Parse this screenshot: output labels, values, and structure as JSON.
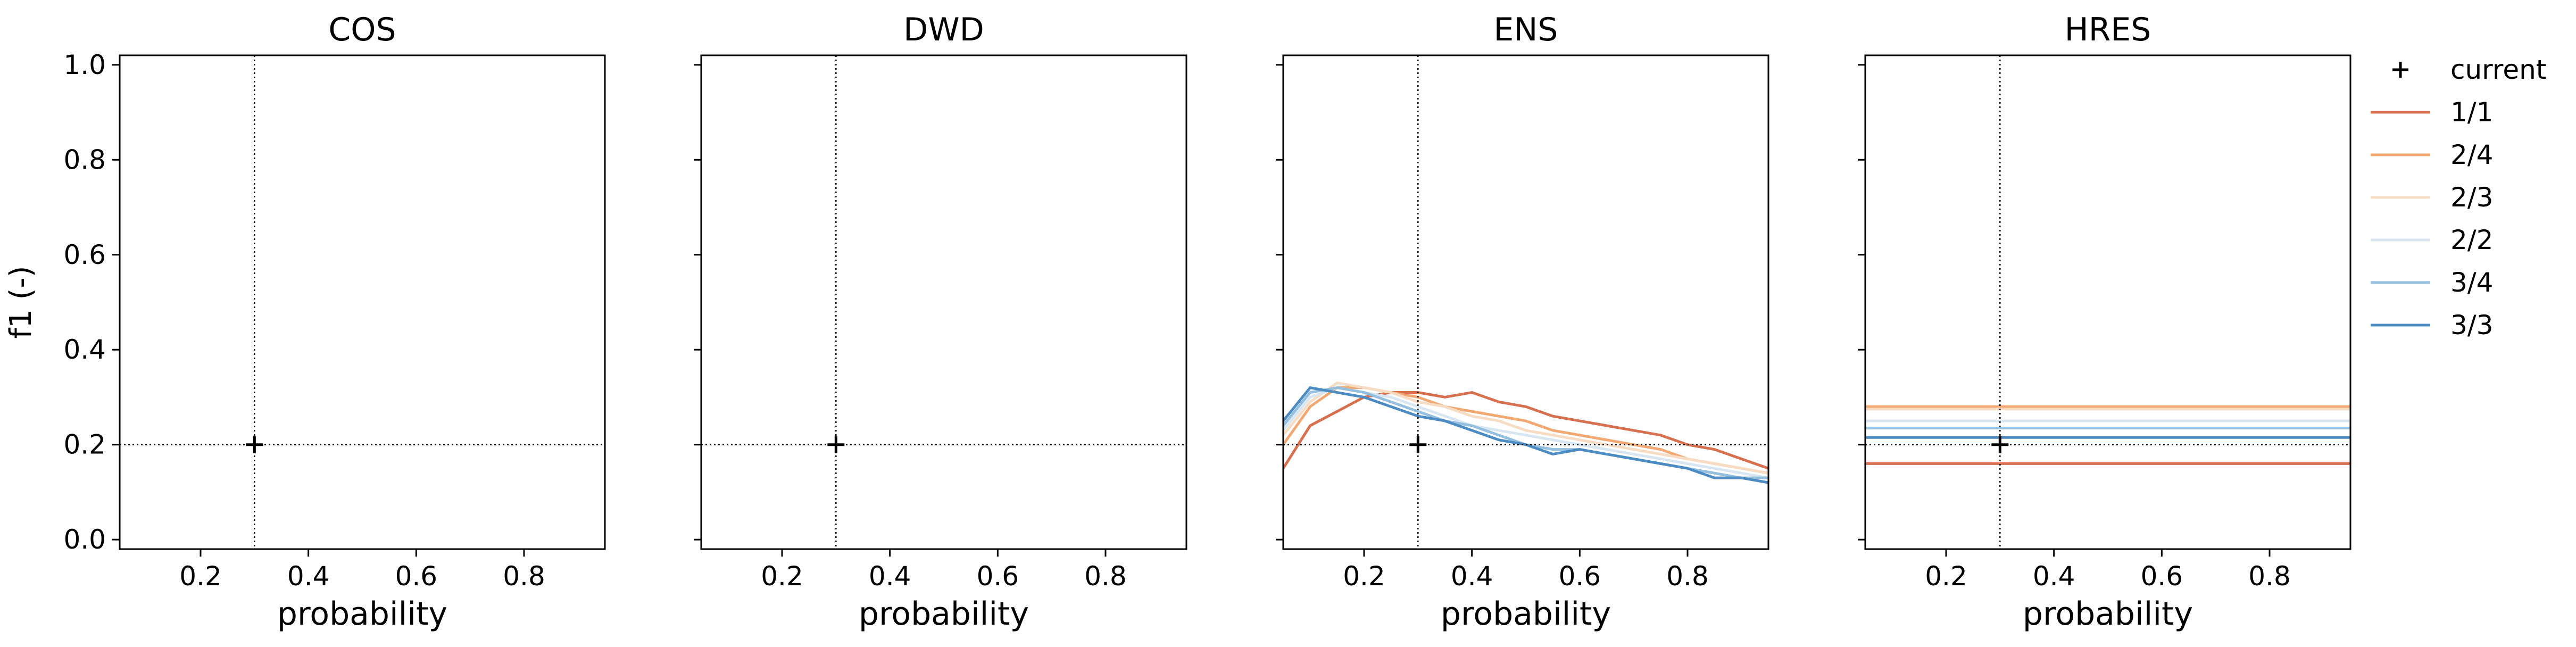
{
  "chart_data": {
    "type": "line",
    "ylabel": "f1 (-)",
    "xlabel": "probability",
    "xlim": [
      0.05,
      0.95
    ],
    "ylim": [
      -0.02,
      1.02
    ],
    "xticks": [
      0.2,
      0.4,
      0.6,
      0.8
    ],
    "xtick_labels": [
      "0.2",
      "0.4",
      "0.6",
      "0.8"
    ],
    "yticks": [
      0.0,
      0.2,
      0.4,
      0.6,
      0.8,
      1.0
    ],
    "ytick_labels": [
      "0.0",
      "0.2",
      "0.4",
      "0.6",
      "0.8",
      "1.0"
    ],
    "grid": false,
    "legend_position": "outside-right",
    "reference": {
      "x": 0.3,
      "y": 0.2,
      "label": "current"
    },
    "series_styles": [
      {
        "name": "1/1",
        "color": "#d6704f"
      },
      {
        "name": "2/4",
        "color": "#f2a873"
      },
      {
        "name": "2/3",
        "color": "#f7dcc4"
      },
      {
        "name": "2/2",
        "color": "#d8e6f2"
      },
      {
        "name": "3/4",
        "color": "#94bfdf"
      },
      {
        "name": "3/3",
        "color": "#4d8cc3"
      }
    ],
    "panels": [
      {
        "title": "COS",
        "series": []
      },
      {
        "title": "DWD",
        "series": []
      },
      {
        "title": "ENS",
        "x": [
          0.05,
          0.1,
          0.15,
          0.2,
          0.25,
          0.3,
          0.35,
          0.4,
          0.45,
          0.5,
          0.55,
          0.6,
          0.65,
          0.7,
          0.75,
          0.8,
          0.85,
          0.9,
          0.95
        ],
        "series": [
          {
            "name": "1/1",
            "values": [
              0.15,
              0.24,
              0.27,
              0.3,
              0.31,
              0.31,
              0.3,
              0.31,
              0.29,
              0.28,
              0.26,
              0.25,
              0.24,
              0.23,
              0.22,
              0.2,
              0.19,
              0.17,
              0.15
            ]
          },
          {
            "name": "2/4",
            "values": [
              0.2,
              0.28,
              0.32,
              0.32,
              0.31,
              0.3,
              0.28,
              0.27,
              0.26,
              0.25,
              0.23,
              0.22,
              0.21,
              0.2,
              0.19,
              0.17,
              0.16,
              0.15,
              0.14
            ]
          },
          {
            "name": "2/3",
            "values": [
              0.22,
              0.29,
              0.33,
              0.32,
              0.31,
              0.29,
              0.28,
              0.26,
              0.25,
              0.23,
              0.22,
              0.21,
              0.2,
              0.19,
              0.18,
              0.17,
              0.16,
              0.15,
              0.14
            ]
          },
          {
            "name": "2/2",
            "values": [
              0.23,
              0.3,
              0.32,
              0.31,
              0.3,
              0.28,
              0.26,
              0.24,
              0.23,
              0.22,
              0.21,
              0.2,
              0.19,
              0.18,
              0.17,
              0.16,
              0.15,
              0.14,
              0.13
            ]
          },
          {
            "name": "3/4",
            "values": [
              0.24,
              0.31,
              0.32,
              0.31,
              0.29,
              0.27,
              0.25,
              0.24,
              0.22,
              0.2,
              0.19,
              0.19,
              0.18,
              0.17,
              0.16,
              0.15,
              0.14,
              0.13,
              0.13
            ]
          },
          {
            "name": "3/3",
            "values": [
              0.25,
              0.32,
              0.31,
              0.3,
              0.28,
              0.26,
              0.25,
              0.23,
              0.21,
              0.2,
              0.18,
              0.19,
              0.18,
              0.17,
              0.16,
              0.15,
              0.13,
              0.13,
              0.12
            ]
          }
        ]
      },
      {
        "title": "HRES",
        "x": [
          0.05,
          0.95
        ],
        "series": [
          {
            "name": "1/1",
            "values": [
              0.16,
              0.16
            ]
          },
          {
            "name": "2/4",
            "values": [
              0.28,
              0.28
            ]
          },
          {
            "name": "2/3",
            "values": [
              0.275,
              0.275
            ]
          },
          {
            "name": "2/2",
            "values": [
              0.25,
              0.25
            ]
          },
          {
            "name": "3/4",
            "values": [
              0.235,
              0.235
            ]
          },
          {
            "name": "3/3",
            "values": [
              0.215,
              0.215
            ]
          }
        ]
      }
    ]
  }
}
